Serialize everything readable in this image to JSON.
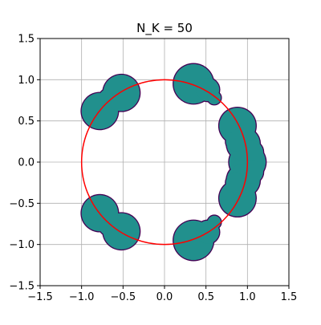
{
  "chart_data": {
    "type": "scatter",
    "title": "N_K = 50",
    "xlabel": "",
    "ylabel": "",
    "xlim": [
      -1.5,
      1.5
    ],
    "ylim": [
      -1.5,
      1.5
    ],
    "x_ticks": [
      -1.5,
      -1.0,
      -0.5,
      0.0,
      0.5,
      1.0,
      1.5
    ],
    "y_ticks": [
      -1.5,
      -1.0,
      -0.5,
      0.0,
      0.5,
      1.0,
      1.5
    ],
    "x_tick_labels": [
      "−1.5",
      "−1.0",
      "−0.5",
      "0.0",
      "0.5",
      "1.0",
      "1.5"
    ],
    "y_tick_labels": [
      "−1.5",
      "−1.0",
      "−0.5",
      "0.0",
      "0.5",
      "1.0",
      "1.5"
    ],
    "grid": true,
    "aspect": "equal",
    "reference_circle": {
      "center": [
        0,
        0
      ],
      "radius": 1.0,
      "color": "#ff0000"
    },
    "regions": {
      "fill_color": "#21908d",
      "edge_color": "#440154",
      "disks": [
        {
          "group": "upper-left",
          "x": -0.78,
          "y": 0.62,
          "r": 0.22
        },
        {
          "group": "upper-left",
          "x": -0.52,
          "y": 0.84,
          "r": 0.22
        },
        {
          "group": "upper-left",
          "x": -0.7,
          "y": 0.8,
          "r": 0.08
        },
        {
          "group": "lower-left",
          "x": -0.78,
          "y": -0.62,
          "r": 0.22
        },
        {
          "group": "lower-left",
          "x": -0.52,
          "y": -0.84,
          "r": 0.22
        },
        {
          "group": "lower-left",
          "x": -0.7,
          "y": -0.8,
          "r": 0.08
        },
        {
          "group": "top",
          "x": 0.35,
          "y": 0.95,
          "r": 0.24
        },
        {
          "group": "top",
          "x": 0.52,
          "y": 0.88,
          "r": 0.14
        },
        {
          "group": "top",
          "x": 0.6,
          "y": 0.78,
          "r": 0.08
        },
        {
          "group": "bottom",
          "x": 0.35,
          "y": -0.95,
          "r": 0.24
        },
        {
          "group": "bottom",
          "x": 0.52,
          "y": -0.85,
          "r": 0.14
        },
        {
          "group": "bottom",
          "x": 0.6,
          "y": -0.73,
          "r": 0.08
        },
        {
          "group": "right",
          "x": 0.88,
          "y": 0.44,
          "r": 0.22
        },
        {
          "group": "right",
          "x": 0.88,
          "y": -0.44,
          "r": 0.22
        },
        {
          "group": "right",
          "x": 1.0,
          "y": 0.0,
          "r": 0.22
        },
        {
          "group": "right",
          "x": 0.95,
          "y": 0.22,
          "r": 0.2
        },
        {
          "group": "right",
          "x": 0.95,
          "y": -0.22,
          "r": 0.2
        },
        {
          "group": "right",
          "x": 1.05,
          "y": 0.12,
          "r": 0.14
        },
        {
          "group": "right",
          "x": 1.05,
          "y": -0.12,
          "r": 0.14
        },
        {
          "group": "right",
          "x": 0.86,
          "y": 0.25,
          "r": 0.12
        },
        {
          "group": "right",
          "x": 0.86,
          "y": -0.25,
          "r": 0.12
        }
      ]
    }
  }
}
